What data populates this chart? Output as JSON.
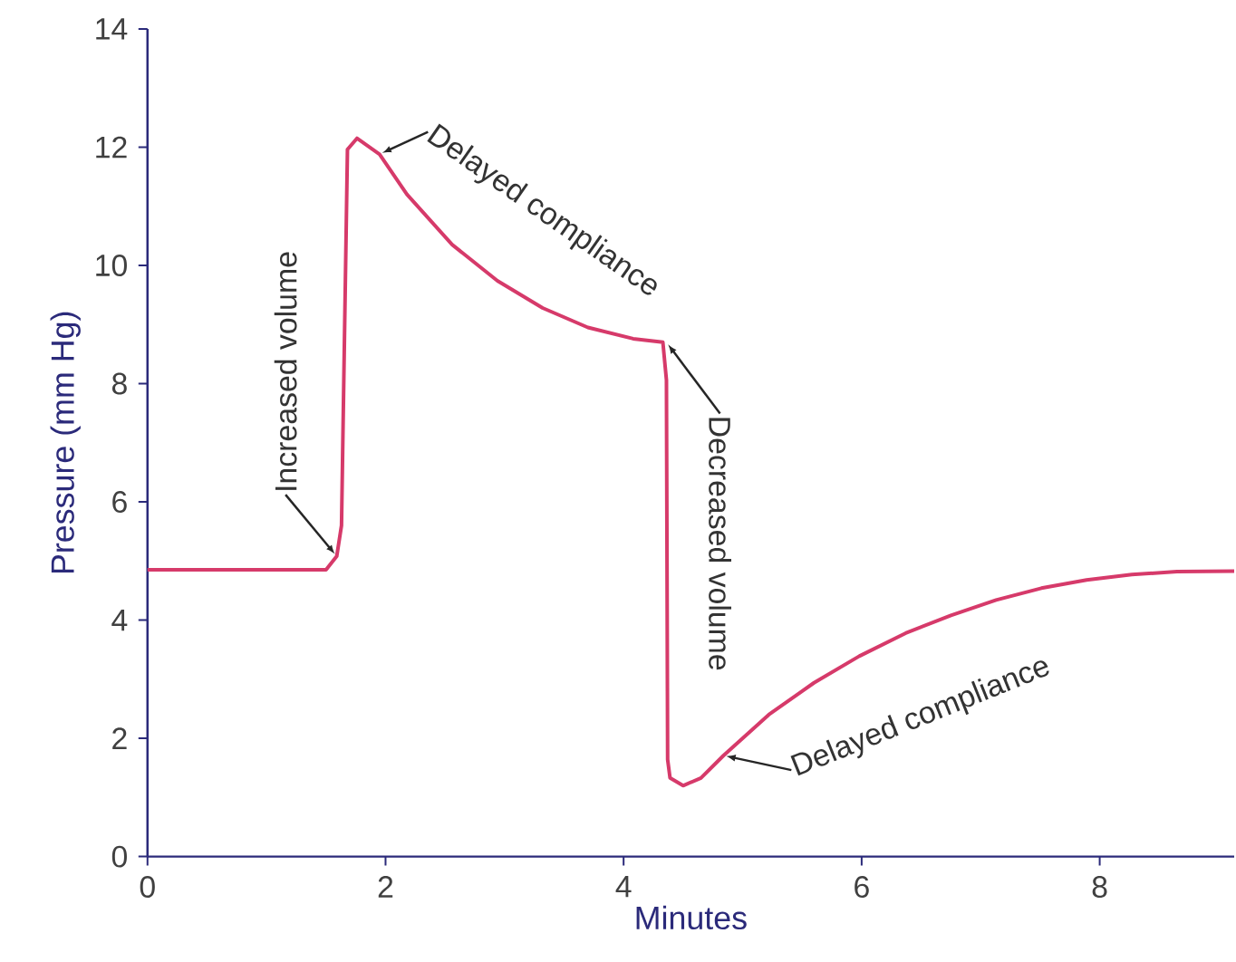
{
  "chart_data": {
    "type": "line",
    "xlabel": "Minutes",
    "ylabel": "Pressure (mm Hg)",
    "color": "#d63a6a",
    "x": [
      0,
      1.5,
      1.59,
      1.63,
      1.68,
      1.76,
      1.95,
      2.18,
      2.56,
      2.94,
      3.32,
      3.7,
      4.08,
      4.33,
      4.36,
      4.37,
      4.39,
      4.5,
      4.65,
      4.84,
      5.22,
      5.6,
      5.98,
      6.37,
      6.75,
      7.13,
      7.51,
      7.89,
      8.27,
      8.65,
      9.13
    ],
    "values": [
      4.85,
      4.85,
      5.08,
      5.6,
      11.96,
      12.15,
      11.88,
      11.2,
      10.35,
      9.74,
      9.28,
      8.95,
      8.76,
      8.7,
      8.06,
      1.64,
      1.33,
      1.2,
      1.33,
      1.71,
      2.4,
      2.94,
      3.39,
      3.78,
      4.08,
      4.34,
      4.54,
      4.68,
      4.77,
      4.82,
      4.83
    ],
    "xlim": [
      0,
      9.13
    ],
    "ylim": [
      0,
      14
    ],
    "xticks": [
      0,
      2,
      4,
      6,
      8
    ],
    "yticks": [
      0,
      2,
      4,
      6,
      8,
      10,
      12,
      14
    ],
    "annotations": [
      {
        "text": "Increased volume",
        "x": 1.59,
        "y": 5.08
      },
      {
        "text": "Delayed compliance",
        "x": 1.95,
        "y": 11.88
      },
      {
        "text": "Decreased volume",
        "x": 4.36,
        "y": 8.7
      },
      {
        "text": "Delayed compliance",
        "x": 4.84,
        "y": 1.71
      }
    ]
  }
}
